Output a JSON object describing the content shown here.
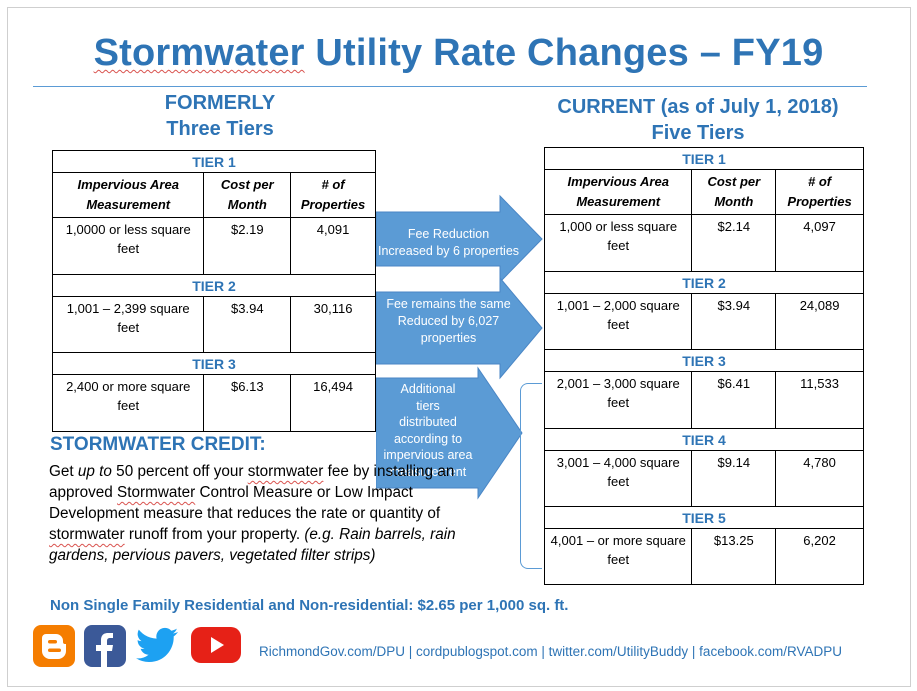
{
  "title": {
    "part1": "Stormwater",
    "part2": " Utility Rate Changes – FY19"
  },
  "formerly": {
    "line1": "FORMERLY",
    "line2": "Three Tiers"
  },
  "current": {
    "line1": "CURRENT (as of July 1, 2018)",
    "line2": "Five Tiers"
  },
  "columns": {
    "area": "Impervious Area Measurement",
    "cost": "Cost per Month",
    "props": "# of Properties"
  },
  "former_tiers": [
    {
      "label": "TIER 1",
      "area": "1,0000  or less square feet",
      "cost": "$2.19",
      "props": "4,091"
    },
    {
      "label": "TIER 2",
      "area": "1,001 – 2,399 square feet",
      "cost": "$3.94",
      "props": "30,116"
    },
    {
      "label": "TIER 3",
      "area": "2,400 or more square feet",
      "cost": "$6.13",
      "props": "16,494"
    }
  ],
  "current_tiers": [
    {
      "label": "TIER 1",
      "area": "1,000 or less square feet",
      "cost": "$2.14",
      "props": "4,097"
    },
    {
      "label": "TIER 2",
      "area": "1,001 – 2,000 square feet",
      "cost": "$3.94",
      "props": "24,089"
    },
    {
      "label": "TIER 3",
      "area": "2,001 – 3,000 square feet",
      "cost": "$6.41",
      "props": "11,533"
    },
    {
      "label": "TIER 4",
      "area": "3,001 – 4,000 square feet",
      "cost": "$9.14",
      "props": "4,780"
    },
    {
      "label": "TIER 5",
      "area": "4,001 – or more square feet",
      "cost": "$13.25",
      "props": "6,202"
    }
  ],
  "arrows": [
    {
      "line1": "Fee Reduction",
      "line2": "Increased by 6 properties"
    },
    {
      "line1": "Fee remains the same",
      "line2": "Reduced by 6,027",
      "line3": "properties"
    },
    {
      "line1": "Additional",
      "line2": "tiers",
      "line3": "distributed",
      "line4": "according to",
      "line5": "impervious  area",
      "line6": "measurement"
    }
  ],
  "credit": {
    "heading": "STORMWATER CREDIT:",
    "t1": "Get ",
    "t2": "up to",
    "t3": " 50 percent off your ",
    "t4": "stormwater",
    "t5": " fee by installing an approved ",
    "t6": "Stormwater",
    "t7": " Control Measure or Low Impact Development measure that reduces the rate or quantity of ",
    "t8": "stormwater",
    "t9": " runoff from your property. ",
    "t10": "(e.g. Rain barrels, rain gardens, pervious pavers, vegetated filter strips)"
  },
  "non_sfr": "Non Single Family Residential and Non-residential: $2.65 per 1,000 sq. ft.",
  "links": "RichmondGov.com/DPU | cordpublogspot.com | twitter.com/UtilityBuddy | facebook.com/RVADPU",
  "icons": {
    "blogger": "blogger-icon",
    "facebook": "facebook-icon",
    "twitter": "twitter-icon",
    "youtube": "youtube-icon"
  },
  "colors": {
    "accent": "#2e74b5",
    "arrow": "#5b9bd5",
    "blogger": "#f57d00",
    "facebook": "#3b5998",
    "twitter": "#1da1f2",
    "youtube": "#e62117"
  }
}
